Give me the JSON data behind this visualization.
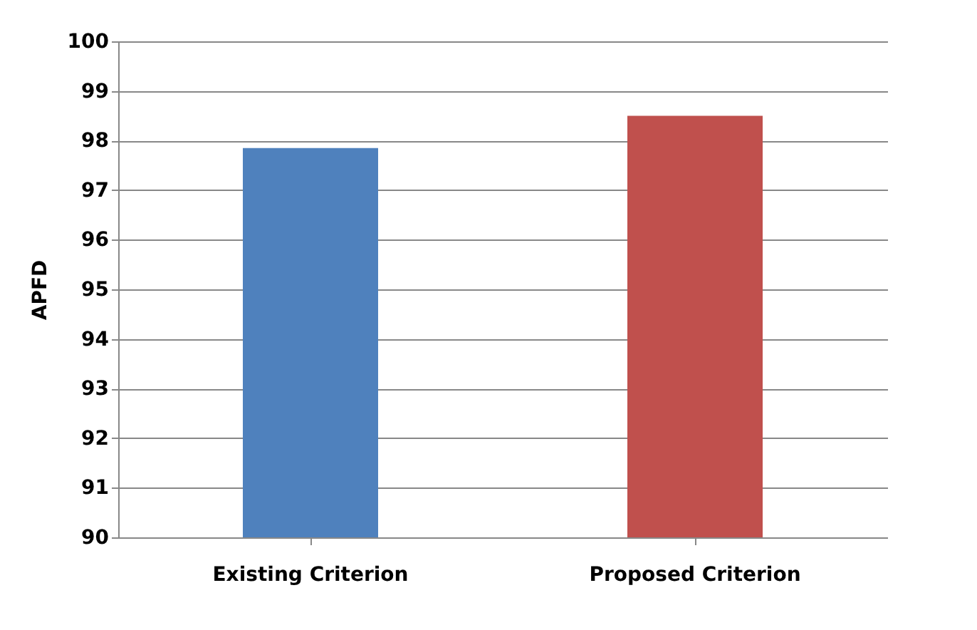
{
  "chart_data": {
    "type": "bar",
    "ylabel": "APFD",
    "categories": [
      "Existing Criterion",
      "Proposed Criterion"
    ],
    "values": [
      97.85,
      98.5
    ],
    "colors": [
      "#4f81bd",
      "#c0504d"
    ],
    "ylim": [
      90,
      100
    ],
    "yticks": [
      90,
      91,
      92,
      93,
      94,
      95,
      96,
      97,
      98,
      99,
      100
    ],
    "grid": "y",
    "legend": false
  }
}
